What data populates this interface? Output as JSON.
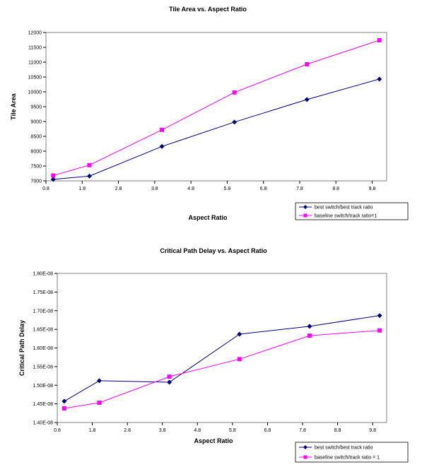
{
  "chart_data": [
    {
      "type": "line",
      "title": "Tile Area vs. Aspect Ratio",
      "xlabel": "Aspect Ratio",
      "ylabel": "Tile Area",
      "xlim": [
        0.8,
        10.2
      ],
      "ylim": [
        7000,
        12000
      ],
      "xticks": [
        "0.8",
        "1.8",
        "2.8",
        "3.8",
        "4.8",
        "5.8",
        "6.8",
        "7.8",
        "8.8",
        "9.8"
      ],
      "xtick_values": [
        0.8,
        1.8,
        2.8,
        3.8,
        4.8,
        5.8,
        6.8,
        7.8,
        8.8,
        9.8
      ],
      "yticks": [
        "7000",
        "7500",
        "8000",
        "8500",
        "9000",
        "9500",
        "10000",
        "10500",
        "11000",
        "11500",
        "12000"
      ],
      "ytick_values": [
        7000,
        7500,
        8000,
        8500,
        9000,
        9500,
        10000,
        10500,
        11000,
        11500,
        12000
      ],
      "legend_placement": "bottom-right",
      "series": [
        {
          "name": "best switch/best track ratio",
          "color": "#000080",
          "marker": "diamond",
          "x": [
            1,
            2,
            4,
            6,
            8,
            10
          ],
          "y": [
            7050,
            7160,
            8160,
            8980,
            9740,
            10430
          ]
        },
        {
          "name": "baseline switch/track ratio=1",
          "color": "#ff00ff",
          "marker": "square",
          "x": [
            1,
            2,
            4,
            6,
            8,
            10
          ],
          "y": [
            7180,
            7530,
            8720,
            9980,
            10930,
            11740
          ]
        }
      ]
    },
    {
      "type": "line",
      "title": "Critical Path Delay vs. Aspect Ratio",
      "xlabel": "Aspect Ratio",
      "ylabel": "Critical Path Delay",
      "xlim": [
        0.8,
        10.2
      ],
      "ylim": [
        1.4e-08,
        1.8e-08
      ],
      "xticks": [
        "0.8",
        "1.8",
        "2.8",
        "3.8",
        "4.8",
        "5.8",
        "6.8",
        "7.8",
        "8.8",
        "9.8"
      ],
      "xtick_values": [
        0.8,
        1.8,
        2.8,
        3.8,
        4.8,
        5.8,
        6.8,
        7.8,
        8.8,
        9.8
      ],
      "yticks": [
        "1.40E-08",
        "1.45E-08",
        "1.50E-08",
        "1.55E-08",
        "1.60E-08",
        "1.65E-08",
        "1.70E-08",
        "1.75E-08",
        "1.80E-08"
      ],
      "ytick_values": [
        1.4e-08,
        1.45e-08,
        1.5e-08,
        1.55e-08,
        1.6e-08,
        1.65e-08,
        1.7e-08,
        1.75e-08,
        1.8e-08
      ],
      "legend_placement": "bottom-right",
      "series": [
        {
          "name": "best switch/best track ratio",
          "color": "#000080",
          "marker": "diamond",
          "x": [
            1,
            2,
            4,
            6,
            8,
            10
          ],
          "y": [
            1.457e-08,
            1.512e-08,
            1.508e-08,
            1.637e-08,
            1.658e-08,
            1.687e-08
          ]
        },
        {
          "name": "baseline switch/track ratio = 1",
          "color": "#ff00ff",
          "marker": "square",
          "x": [
            1,
            2,
            4,
            6,
            8,
            10
          ],
          "y": [
            1.438e-08,
            1.453e-08,
            1.523e-08,
            1.57e-08,
            1.633e-08,
            1.647e-08
          ]
        }
      ]
    }
  ]
}
